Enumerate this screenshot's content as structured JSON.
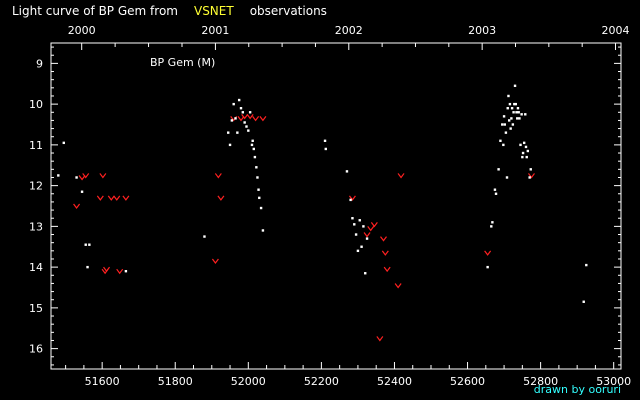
{
  "title": {
    "prefix": "Light curve of BP Gem from",
    "source": "VSNET",
    "suffix": "observations",
    "source_color": "#ffff33"
  },
  "credit": {
    "text": "drawn by ooruri",
    "color": "#33ffff"
  },
  "chart_data": {
    "type": "scatter",
    "legend": "BP Gem (M)",
    "xlim": [
      51460,
      53020
    ],
    "ylim": [
      8.5,
      16.5
    ],
    "y_inverted": true,
    "x_ticks": [
      51600,
      51800,
      52000,
      52200,
      52400,
      52600,
      52800,
      53000
    ],
    "x_tick_labels": [
      "51600",
      "51800",
      "52000",
      "52200",
      "52400",
      "52600",
      "52800",
      "53000"
    ],
    "y_ticks": [
      9,
      10,
      11,
      12,
      13,
      14,
      15,
      16
    ],
    "y_tick_labels": [
      "9",
      "10",
      "11",
      "12",
      "13",
      "14",
      "15",
      "16"
    ],
    "year_ticks": [
      51544,
      51910,
      52275,
      52640,
      53005
    ],
    "year_labels": [
      "2000",
      "2001",
      "2002",
      "2003",
      "2004"
    ],
    "colors": {
      "detections": "#ffffff",
      "upper_limits": "#ff2020",
      "axes": "#ffffff"
    },
    "series": [
      {
        "marker": "dot",
        "x": [
          51480,
          51495,
          51530,
          51545,
          51555,
          51560,
          51565,
          51665,
          51880,
          51945,
          51950,
          51955,
          51960,
          51965,
          51970,
          51975,
          51980,
          51985,
          51990,
          51995,
          52000,
          52005,
          52010,
          52012,
          52015,
          52018,
          52022,
          52025,
          52028,
          52030,
          52035,
          52040,
          52210,
          52212,
          52270,
          52280,
          52285,
          52290,
          52295,
          52300,
          52305,
          52310,
          52315,
          52320,
          52325,
          52655,
          52665,
          52668,
          52675,
          52678,
          52685,
          52690,
          52695,
          52698,
          52700,
          52702,
          52705,
          52708,
          52710,
          52712,
          52714,
          52716,
          52718,
          52720,
          52722,
          52724,
          52726,
          52728,
          52730,
          52732,
          52734,
          52736,
          52738,
          52740,
          52742,
          52745,
          52748,
          52750,
          52752,
          52755,
          52758,
          52760,
          52762,
          52765,
          52770,
          52773,
          52918,
          52925
        ],
        "y": [
          11.75,
          10.95,
          11.8,
          12.15,
          13.45,
          14.0,
          13.45,
          14.1,
          13.25,
          10.7,
          11.0,
          10.4,
          10.0,
          10.35,
          10.7,
          9.9,
          10.1,
          10.2,
          10.45,
          10.55,
          10.65,
          10.2,
          11.0,
          10.9,
          11.1,
          11.3,
          11.55,
          11.8,
          12.1,
          12.3,
          12.55,
          13.1,
          10.9,
          11.1,
          11.65,
          12.35,
          12.8,
          12.95,
          13.2,
          13.6,
          12.85,
          13.5,
          13.0,
          14.15,
          13.3,
          14.0,
          13.0,
          12.9,
          12.1,
          12.2,
          11.6,
          10.9,
          10.5,
          11.0,
          10.3,
          10.5,
          10.7,
          11.8,
          10.1,
          9.8,
          10.4,
          10.0,
          10.6,
          10.35,
          10.1,
          10.5,
          10.2,
          10.0,
          9.55,
          10.0,
          10.2,
          10.35,
          10.1,
          10.2,
          10.35,
          11.0,
          10.25,
          11.3,
          11.2,
          10.95,
          10.25,
          11.05,
          11.3,
          11.15,
          11.8,
          11.6,
          14.85,
          13.95
        ]
      },
      {
        "marker": "v",
        "x": [
          51530,
          51545,
          51555,
          51595,
          51602,
          51608,
          51612,
          51625,
          51640,
          51648,
          51665,
          51910,
          51918,
          51925,
          51960,
          51980,
          51990,
          52005,
          52020,
          52040,
          52285,
          52325,
          52335,
          52345,
          52360,
          52370,
          52375,
          52380,
          52410,
          52418,
          52655,
          52775
        ],
        "y": [
          12.5,
          11.8,
          11.75,
          12.3,
          11.75,
          14.1,
          14.05,
          12.3,
          12.3,
          14.1,
          12.3,
          13.85,
          11.75,
          12.3,
          10.35,
          10.35,
          10.3,
          10.3,
          10.35,
          10.35,
          12.3,
          13.2,
          13.05,
          12.95,
          15.75,
          13.3,
          13.65,
          14.05,
          14.45,
          11.75,
          13.65,
          11.75
        ]
      }
    ]
  }
}
